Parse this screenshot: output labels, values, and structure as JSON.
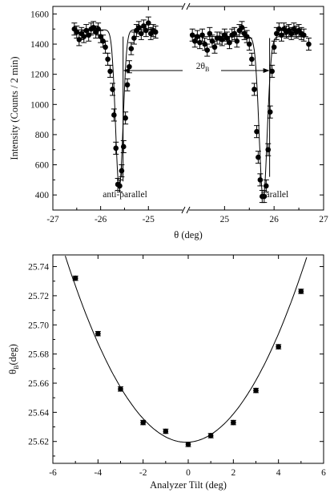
{
  "chart_data": [
    {
      "type": "scatter",
      "ylabel": "Intensity (Counts / 2 min)",
      "xlabel": "θ (deg)",
      "ylim": [
        300,
        1650
      ],
      "broken_x_axis": true,
      "segments": [
        {
          "xlim": [
            -27,
            -24.25
          ],
          "ticks": [
            "-27",
            "-26",
            "-25"
          ]
        },
        {
          "xlim": [
            24.25,
            27
          ],
          "ticks": [
            "25",
            "26",
            "27"
          ]
        }
      ],
      "yticks": [
        "400",
        "600",
        "800",
        "1000",
        "1200",
        "1400",
        "1600"
      ],
      "annotations": {
        "left_dip": "anti-parallel",
        "right_dip": "parallel",
        "arrow_label_main": "2θ",
        "arrow_label_sub": "B"
      },
      "series": [
        {
          "points": [
            [
              -26.55,
              1500
            ],
            [
              -26.5,
              1480
            ],
            [
              -26.45,
              1430
            ],
            [
              -26.4,
              1470
            ],
            [
              -26.35,
              1450
            ],
            [
              -26.3,
              1490
            ],
            [
              -26.25,
              1460
            ],
            [
              -26.2,
              1500
            ],
            [
              -26.15,
              1510
            ],
            [
              -26.1,
              1480
            ],
            [
              -26.05,
              1500
            ],
            [
              -26.0,
              1450
            ],
            [
              -25.95,
              1420
            ],
            [
              -25.9,
              1380
            ],
            [
              -25.85,
              1300
            ],
            [
              -25.8,
              1220
            ],
            [
              -25.75,
              1100
            ],
            [
              -25.72,
              930
            ],
            [
              -25.68,
              710
            ],
            [
              -25.64,
              470
            ],
            [
              -25.6,
              460
            ],
            [
              -25.56,
              560
            ],
            [
              -25.52,
              720
            ],
            [
              -25.48,
              910
            ],
            [
              -25.44,
              1130
            ],
            [
              -25.4,
              1250
            ],
            [
              -25.36,
              1370
            ],
            [
              -25.3,
              1440
            ],
            [
              -25.25,
              1490
            ],
            [
              -25.2,
              1510
            ],
            [
              -25.15,
              1470
            ],
            [
              -25.1,
              1520
            ],
            [
              -25.05,
              1490
            ],
            [
              -25.0,
              1540
            ],
            [
              -24.95,
              1470
            ],
            [
              -24.9,
              1490
            ],
            [
              -24.85,
              1480
            ],
            [
              24.35,
              1460
            ],
            [
              24.4,
              1420
            ],
            [
              24.45,
              1450
            ],
            [
              24.5,
              1410
            ],
            [
              24.55,
              1460
            ],
            [
              24.6,
              1400
            ],
            [
              24.65,
              1360
            ],
            [
              24.7,
              1470
            ],
            [
              24.75,
              1420
            ],
            [
              24.8,
              1380
            ],
            [
              24.85,
              1440
            ],
            [
              24.9,
              1440
            ],
            [
              24.95,
              1430
            ],
            [
              25.0,
              1460
            ],
            [
              25.05,
              1440
            ],
            [
              25.1,
              1410
            ],
            [
              25.15,
              1460
            ],
            [
              25.2,
              1470
            ],
            [
              25.25,
              1420
            ],
            [
              25.3,
              1490
            ],
            [
              25.35,
              1510
            ],
            [
              25.4,
              1470
            ],
            [
              25.45,
              1450
            ],
            [
              25.5,
              1400
            ],
            [
              25.55,
              1300
            ],
            [
              25.6,
              1100
            ],
            [
              25.65,
              820
            ],
            [
              25.68,
              650
            ],
            [
              25.72,
              500
            ],
            [
              25.76,
              390
            ],
            [
              25.8,
              390
            ],
            [
              25.84,
              460
            ],
            [
              25.88,
              700
            ],
            [
              25.92,
              950
            ],
            [
              25.96,
              1220
            ],
            [
              26.0,
              1380
            ],
            [
              26.05,
              1470
            ],
            [
              26.1,
              1500
            ],
            [
              26.15,
              1460
            ],
            [
              26.2,
              1500
            ],
            [
              26.25,
              1480
            ],
            [
              26.3,
              1490
            ],
            [
              26.35,
              1470
            ],
            [
              26.4,
              1500
            ],
            [
              26.45,
              1480
            ],
            [
              26.5,
              1490
            ],
            [
              26.55,
              1470
            ],
            [
              26.6,
              1460
            ],
            [
              26.7,
              1400
            ]
          ],
          "error": 40
        }
      ]
    },
    {
      "type": "scatter",
      "xlabel": "Analyzer Tilt (deg)",
      "ylabel_main": "θ",
      "ylabel_sub": "B",
      "ylabel_unit": "(deg)",
      "xlim": [
        -6,
        6
      ],
      "ylim": [
        25.605,
        25.748
      ],
      "xticks": [
        "-6",
        "-4",
        "-2",
        "0",
        "2",
        "4",
        "6"
      ],
      "yticks": [
        "25.62",
        "25.64",
        "25.66",
        "25.68",
        "25.70",
        "25.72",
        "25.74"
      ],
      "series": [
        {
          "x": [
            -5,
            -4,
            -3,
            -2,
            -1,
            0,
            1,
            2,
            3,
            4,
            5
          ],
          "y": [
            25.732,
            25.694,
            25.656,
            25.633,
            25.627,
            25.618,
            25.624,
            25.633,
            25.655,
            25.685,
            25.723
          ],
          "error": 0.0015
        }
      ],
      "fit": {
        "a": 0.00445,
        "b": 0.0008,
        "c": 25.6195
      }
    }
  ]
}
